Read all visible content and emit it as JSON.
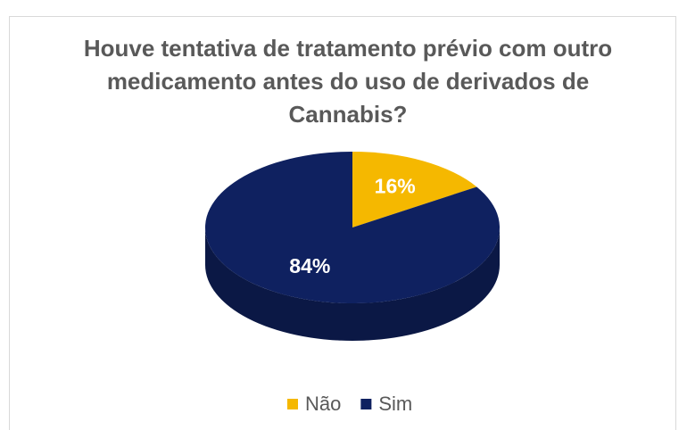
{
  "chart_data": {
    "type": "pie3d",
    "title": "Houve tentativa de tratamento prévio com outro medicamento antes do uso de derivados de Cannabis?",
    "categories": [
      "Não",
      "Sim"
    ],
    "values": [
      16,
      84
    ],
    "value_labels": [
      "16%",
      "84%"
    ],
    "colors": [
      "#f5b800",
      "#0f2160"
    ],
    "legend": "bottom"
  }
}
